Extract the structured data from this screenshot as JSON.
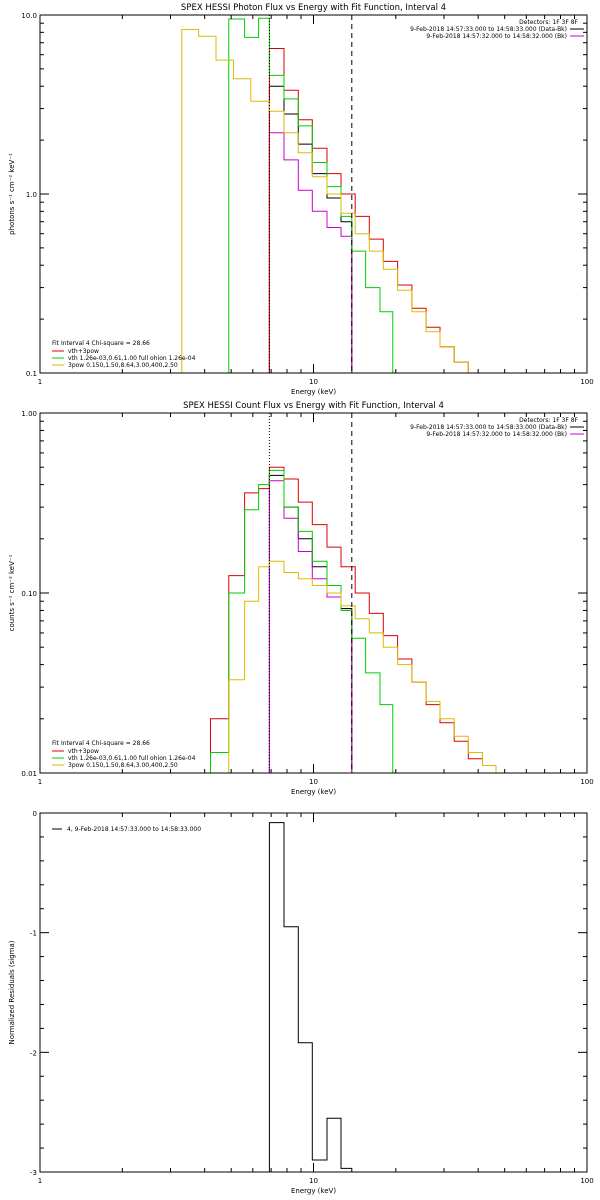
{
  "chart_data": [
    {
      "type": "line",
      "title": "SPEX HESSI Photon Flux vs Energy with Fit Function, Interval 4",
      "xlabel": "Energy (keV)",
      "ylabel": "photons s⁻¹ cm⁻² keV⁻¹",
      "xscale": "log",
      "yscale": "log",
      "xlim": [
        1,
        100
      ],
      "ylim": [
        0.1,
        10
      ],
      "xticks": [
        {
          "v": 1,
          "label": "1"
        },
        {
          "v": 10,
          "label": "10"
        },
        {
          "v": 100,
          "label": "100"
        }
      ],
      "yticks": [
        {
          "v": 0.1,
          "label": "0.1"
        },
        {
          "v": 1,
          "label": "1.0"
        },
        {
          "v": 10,
          "label": "10.0"
        }
      ],
      "legend_right": {
        "header": "Detectors: 1F 3F 8F",
        "entries": [
          {
            "text": "9-Feb-2018 14:57:33.000 to 14:58:33.000 (Data-Bk)",
            "color": "#000000"
          },
          {
            "text": "9-Feb-2018 14:57:32.000 to 14:58:32.000 (Bk)",
            "color": "#cc00cc"
          }
        ]
      },
      "legend_left": {
        "header": "Fit Interval 4   Chi-square = 28.66",
        "entries": [
          {
            "text": "vth+3pow",
            "color": "#dd0000"
          },
          {
            "text": "vth 1.26e-03,0.61,1.00  full ohion 1.26e-04",
            "color": "#00cc00"
          },
          {
            "text": "3pow 0.150,1.50,8.64,3.00,400,2.50",
            "color": "#ddbb00"
          }
        ]
      },
      "vlines": [
        {
          "x": 6.9,
          "style": "dotted",
          "color": "#000000"
        },
        {
          "x": 13.8,
          "style": "dashed",
          "color": "#000000"
        }
      ],
      "series": [
        {
          "color": "#000000",
          "edges": [
            6.9,
            7.8,
            8.8,
            9.9,
            11.2,
            12.6,
            13.8
          ],
          "values": [
            4.0,
            2.8,
            1.9,
            1.3,
            0.95,
            0.7
          ]
        },
        {
          "color": "#cc00cc",
          "edges": [
            6.9,
            7.8,
            8.8,
            9.9,
            11.2,
            12.6,
            13.8
          ],
          "values": [
            2.2,
            1.55,
            1.05,
            0.8,
            0.65,
            0.58
          ]
        },
        {
          "color": "#dd0000",
          "edges": [
            6.9,
            7.8,
            8.8,
            9.9,
            11.2,
            12.6,
            14.2,
            16.0,
            18.0,
            20.3,
            22.9,
            25.8,
            29.0,
            32.7,
            36.8,
            41.5
          ],
          "values": [
            6.5,
            3.8,
            2.6,
            1.8,
            1.3,
            1.0,
            0.75,
            0.56,
            0.42,
            0.31,
            0.23,
            0.18,
            0.14,
            0.115,
            0.1
          ]
        },
        {
          "color": "#00cc00",
          "edges": [
            4.9,
            5.6,
            6.3,
            6.9,
            7.8,
            8.8,
            9.9,
            11.2,
            12.6,
            13.8,
            15.5,
            17.5,
            19.5
          ],
          "values": [
            9.5,
            7.5,
            9.6,
            4.6,
            3.4,
            2.4,
            1.5,
            1.1,
            0.75,
            0.48,
            0.3,
            0.22
          ]
        },
        {
          "color": "#ddbb00",
          "edges": [
            3.3,
            3.8,
            4.4,
            5.1,
            5.9,
            6.9,
            7.8,
            8.8,
            9.9,
            11.2,
            12.6,
            14.2,
            16.0,
            18.0,
            20.3,
            22.9,
            25.8,
            29.0,
            32.7,
            36.8,
            41.5
          ],
          "values": [
            8.3,
            7.6,
            5.6,
            4.4,
            3.3,
            2.9,
            2.2,
            1.7,
            1.25,
            1.0,
            0.78,
            0.6,
            0.48,
            0.38,
            0.29,
            0.22,
            0.17,
            0.14,
            0.115,
            0.1
          ]
        }
      ]
    },
    {
      "type": "line",
      "title": "SPEX HESSI Count Flux vs Energy with Fit Function, Interval 4",
      "xlabel": "Energy (keV)",
      "ylabel": "counts s⁻¹ cm⁻² keV⁻¹",
      "xscale": "log",
      "yscale": "log",
      "xlim": [
        1,
        100
      ],
      "ylim": [
        0.01,
        1
      ],
      "xticks": [
        {
          "v": 1,
          "label": "1"
        },
        {
          "v": 10,
          "label": "10"
        },
        {
          "v": 100,
          "label": "100"
        }
      ],
      "yticks": [
        {
          "v": 0.01,
          "label": "0.01"
        },
        {
          "v": 0.1,
          "label": "0.10"
        },
        {
          "v": 1,
          "label": "1.00"
        }
      ],
      "legend_right": {
        "header": "Detectors: 1F 3F 8F",
        "entries": [
          {
            "text": "9-Feb-2018 14:57:33.000 to 14:58:33.000 (Data-Bk)",
            "color": "#000000"
          },
          {
            "text": "9-Feb-2018 14:57:32.000 to 14:58:32.000 (Bk)",
            "color": "#cc00cc"
          }
        ]
      },
      "legend_left": {
        "header": "Fit Interval 4   Chi-square = 28.66",
        "entries": [
          {
            "text": "vth+3pow",
            "color": "#dd0000"
          },
          {
            "text": "vth 1.26e-03,0.61,1.00  full ohion 1.26e-04",
            "color": "#00cc00"
          },
          {
            "text": "3pow 0.150,1.50,8.64,3.00,400,2.50",
            "color": "#ddbb00"
          }
        ]
      },
      "vlines": [
        {
          "x": 6.9,
          "style": "dotted",
          "color": "#000000"
        },
        {
          "x": 13.8,
          "style": "dashed",
          "color": "#000000"
        }
      ],
      "series": [
        {
          "color": "#000000",
          "edges": [
            6.9,
            7.8,
            8.8,
            9.9,
            11.2,
            12.6,
            13.8
          ],
          "values": [
            0.45,
            0.3,
            0.2,
            0.14,
            0.1,
            0.082
          ]
        },
        {
          "color": "#cc00cc",
          "edges": [
            6.9,
            7.8,
            8.8,
            9.9,
            11.2,
            12.6,
            13.8
          ],
          "values": [
            0.42,
            0.26,
            0.17,
            0.12,
            0.095,
            0.08
          ]
        },
        {
          "color": "#dd0000",
          "edges": [
            4.2,
            4.9,
            5.6,
            6.3,
            6.9,
            7.8,
            8.8,
            9.9,
            11.2,
            12.6,
            14.2,
            16.0,
            18.0,
            20.3,
            22.9,
            25.8,
            29.0,
            32.7,
            36.8,
            41.5,
            46.5
          ],
          "values": [
            0.02,
            0.125,
            0.36,
            0.38,
            0.5,
            0.43,
            0.32,
            0.24,
            0.18,
            0.14,
            0.1,
            0.077,
            0.058,
            0.043,
            0.032,
            0.024,
            0.019,
            0.015,
            0.012,
            0.011
          ]
        },
        {
          "color": "#00cc00",
          "edges": [
            4.2,
            4.9,
            5.6,
            6.3,
            6.9,
            7.8,
            8.8,
            9.9,
            11.2,
            12.6,
            13.8,
            15.5,
            17.5,
            19.5
          ],
          "values": [
            0.013,
            0.1,
            0.29,
            0.4,
            0.48,
            0.3,
            0.22,
            0.15,
            0.11,
            0.08,
            0.056,
            0.036,
            0.024
          ]
        },
        {
          "color": "#ddbb00",
          "edges": [
            4.9,
            5.6,
            6.3,
            6.9,
            7.8,
            8.8,
            9.9,
            11.2,
            12.6,
            14.2,
            16.0,
            18.0,
            20.3,
            22.9,
            25.8,
            29.0,
            32.7,
            36.8,
            41.5,
            46.5
          ],
          "values": [
            0.033,
            0.09,
            0.14,
            0.15,
            0.13,
            0.12,
            0.11,
            0.1,
            0.085,
            0.072,
            0.06,
            0.05,
            0.04,
            0.032,
            0.025,
            0.02,
            0.016,
            0.013,
            0.011
          ]
        }
      ]
    },
    {
      "type": "line",
      "title": "",
      "xlabel": "Energy (keV)",
      "ylabel": "Normalized Residuals (sigma)",
      "xscale": "log",
      "yscale": "linear",
      "xlim": [
        1,
        100
      ],
      "ylim": [
        -3,
        0
      ],
      "xticks": [
        {
          "v": 1,
          "label": "1"
        },
        {
          "v": 10,
          "label": "10"
        },
        {
          "v": 100,
          "label": "100"
        }
      ],
      "yticks": [
        {
          "v": 0,
          "label": "0"
        },
        {
          "v": -1,
          "label": "-1"
        },
        {
          "v": -2,
          "label": "-2"
        },
        {
          "v": -3,
          "label": "-3"
        }
      ],
      "legend_left_top": {
        "entries": [
          {
            "text": "4,  9-Feb-2018 14:57:33.000 to 14:58:33.000",
            "color": "#000000"
          }
        ]
      },
      "series": [
        {
          "color": "#000000",
          "edges": [
            6.9,
            7.8,
            8.8,
            9.9,
            11.2,
            12.6,
            13.8
          ],
          "values": [
            -0.08,
            -0.95,
            -1.92,
            -2.9,
            -2.55,
            -2.97
          ]
        }
      ]
    }
  ]
}
